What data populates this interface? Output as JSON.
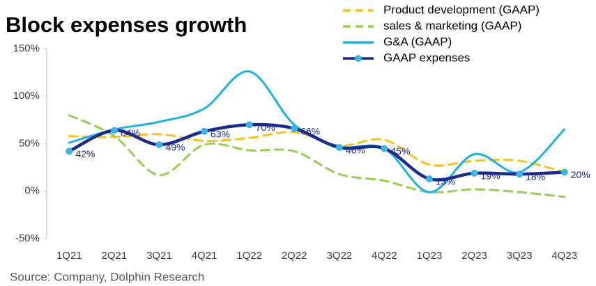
{
  "chart_data": {
    "type": "line",
    "title": "Block expenses growth",
    "source": "Source: Company, Dolphin Research",
    "categories": [
      "1Q21",
      "2Q21",
      "3Q21",
      "4Q21",
      "1Q22",
      "2Q22",
      "3Q22",
      "4Q22",
      "1Q23",
      "2Q23",
      "3Q23",
      "4Q23"
    ],
    "series": [
      {
        "name": "Product development (GAAP)",
        "color": "#f5c21b",
        "dashed": true,
        "values": [
          58,
          57,
          60,
          53,
          56,
          62,
          48,
          54,
          28,
          32,
          32,
          20
        ]
      },
      {
        "name": "sales & marketing (GAAP)",
        "color": "#92d050",
        "dashed": true,
        "values": [
          80,
          58,
          17,
          49,
          43,
          42,
          18,
          11,
          -1,
          2,
          -1,
          -6
        ]
      },
      {
        "name": "G&A (GAAP)",
        "color": "#1fb0e6",
        "dashed": false,
        "values": [
          51,
          65,
          73,
          87,
          126,
          70,
          47,
          45,
          -1,
          39,
          20,
          65
        ]
      },
      {
        "name": "GAAP expenses",
        "color": "#1a2b8c",
        "dashed": false,
        "marker_color": "#3cb4e6",
        "values": [
          42,
          64,
          49,
          63,
          70,
          66,
          46,
          45,
          13,
          19,
          18,
          20
        ],
        "value_labels": [
          "42%",
          "64%",
          "49%",
          "63%",
          "70%",
          "66%",
          "46%",
          "45%",
          "13%",
          "19%",
          "18%",
          "20%"
        ]
      }
    ],
    "ylim": [
      -50,
      150
    ],
    "yticks": [
      {
        "value": -50,
        "label": "-50%"
      },
      {
        "value": 0,
        "label": "0%"
      },
      {
        "value": 50,
        "label": "50%"
      },
      {
        "value": 100,
        "label": "100%"
      },
      {
        "value": 150,
        "label": "150%"
      }
    ],
    "grid": false
  }
}
